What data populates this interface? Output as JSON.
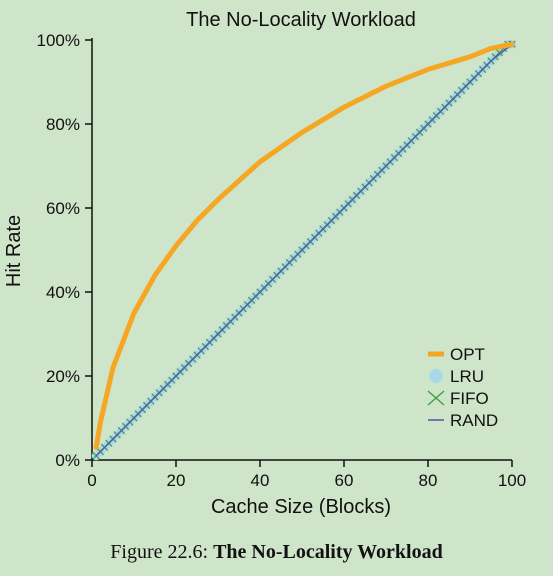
{
  "chart_data": {
    "type": "line",
    "title": "The No-Locality Workload",
    "xlabel": "Cache Size (Blocks)",
    "ylabel": "Hit Rate",
    "xlim": [
      0,
      100
    ],
    "ylim": [
      0,
      100
    ],
    "x_ticks": [
      "0",
      "20",
      "40",
      "60",
      "80",
      "100"
    ],
    "y_ticks": [
      "0%",
      "20%",
      "40%",
      "60%",
      "80%",
      "100%"
    ],
    "legend_position": "bottom-right",
    "x": [
      1,
      2,
      5,
      10,
      15,
      20,
      25,
      30,
      40,
      50,
      60,
      70,
      80,
      90,
      95,
      100
    ],
    "series": [
      {
        "name": "OPT",
        "values": [
          3,
          9,
          22,
          35,
          44,
          51,
          57,
          62,
          71,
          78,
          84,
          89,
          93,
          96,
          98,
          99
        ],
        "color": "#f5a623"
      },
      {
        "name": "LRU",
        "values": [
          1,
          2,
          5,
          10,
          15,
          20,
          25,
          30,
          40,
          50,
          60,
          70,
          80,
          90,
          95,
          99
        ],
        "color": "#a8d8ea"
      },
      {
        "name": "FIFO",
        "values": [
          1,
          2,
          5,
          10,
          15,
          20,
          25,
          30,
          40,
          50,
          60,
          70,
          80,
          90,
          95,
          99
        ],
        "color": "#3a9a3a"
      },
      {
        "name": "RAND",
        "values": [
          1,
          2,
          5,
          10,
          15,
          20,
          25,
          30,
          40,
          50,
          60,
          70,
          80,
          90,
          95,
          99
        ],
        "color": "#5a5f9a"
      }
    ]
  },
  "caption": {
    "prefix": "Figure 22.6:",
    "title": "The No-Locality Workload"
  }
}
